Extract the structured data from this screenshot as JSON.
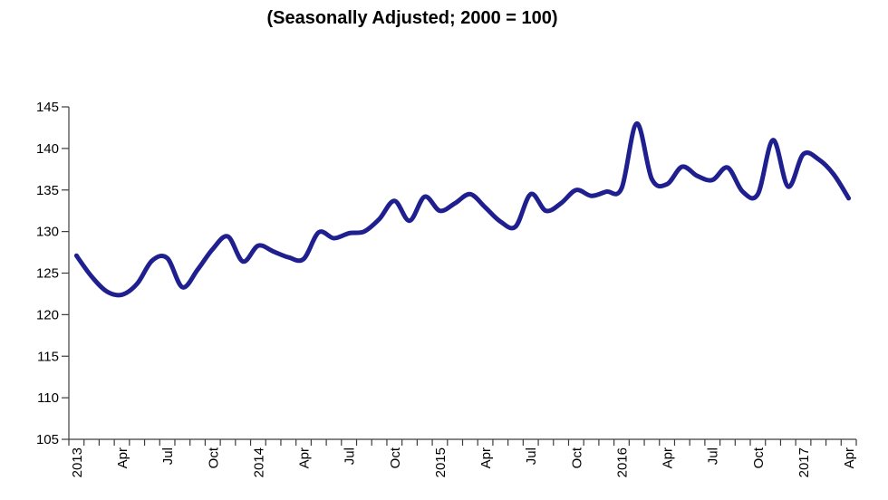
{
  "figure": {
    "title": "(Seasonally Adjusted; 2000 = 100)"
  },
  "chart_data": {
    "type": "line",
    "title": "(Seasonally Adjusted; 2000 = 100)",
    "xlabel": "",
    "ylabel": "",
    "grid": false,
    "legend_position": "none",
    "line_smooth": true,
    "line_color": "#1f1f8f",
    "axis_color": "#3c3c3c",
    "ylim": [
      105,
      145
    ],
    "y_ticks": [
      145,
      140,
      135,
      130,
      125,
      120,
      115,
      110,
      105
    ],
    "x_tick_labels": [
      "2013",
      "Apr",
      "Jul",
      "Oct",
      "2014",
      "Apr",
      "Jul",
      "Oct",
      "2015",
      "Apr",
      "Jul",
      "Oct",
      "2016",
      "Apr",
      "Jul",
      "Oct",
      "2017",
      "Apr"
    ],
    "x_label_every_n_months": 3,
    "x_range_text": "Jan 2013 - Apr 2017",
    "categories": [
      "Jan 2013",
      "Feb 2013",
      "Mar 2013",
      "Apr 2013",
      "May 2013",
      "Jun 2013",
      "Jul 2013",
      "Aug 2013",
      "Sep 2013",
      "Oct 2013",
      "Nov 2013",
      "Dec 2013",
      "Jan 2014",
      "Feb 2014",
      "Mar 2014",
      "Apr 2014",
      "May 2014",
      "Jun 2014",
      "Jul 2014",
      "Aug 2014",
      "Sep 2014",
      "Oct 2014",
      "Nov 2014",
      "Dec 2014",
      "Jan 2015",
      "Feb 2015",
      "Mar 2015",
      "Apr 2015",
      "May 2015",
      "Jun 2015",
      "Jul 2015",
      "Aug 2015",
      "Sep 2015",
      "Oct 2015",
      "Nov 2015",
      "Dec 2015",
      "Jan 2016",
      "Feb 2016",
      "Mar 2016",
      "Apr 2016",
      "May 2016",
      "Jun 2016",
      "Jul 2016",
      "Aug 2016",
      "Sep 2016",
      "Oct 2016",
      "Nov 2016",
      "Dec 2016",
      "Jan 2017",
      "Feb 2017",
      "Mar 2017",
      "Apr 2017"
    ],
    "series": [
      {
        "name": "Index (2000 = 100)",
        "values": [
          127.1,
          124.6,
          122.8,
          122.4,
          123.7,
          126.5,
          126.8,
          123.3,
          125.4,
          127.9,
          129.4,
          126.4,
          128.3,
          127.6,
          126.9,
          126.7,
          129.9,
          129.2,
          129.8,
          130.0,
          131.5,
          133.7,
          131.3,
          134.2,
          132.5,
          133.4,
          134.5,
          132.9,
          131.2,
          130.6,
          134.5,
          132.5,
          133.4,
          135.0,
          134.3,
          134.8,
          135.2,
          143.0,
          136.3,
          135.7,
          137.8,
          136.7,
          136.2,
          137.7,
          134.8,
          134.5,
          141.0,
          135.4,
          139.3,
          138.7,
          136.9,
          134.0
        ]
      }
    ]
  }
}
